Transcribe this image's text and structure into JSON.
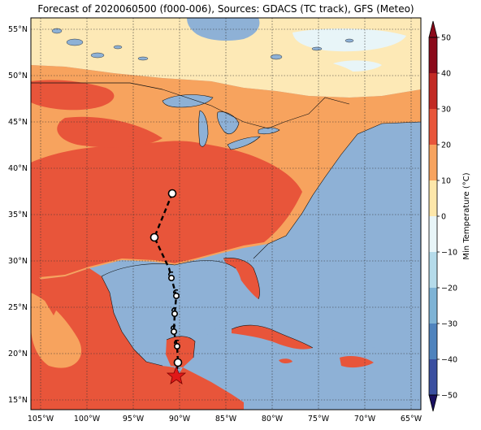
{
  "title": "Forecast of 2020060500 (f000-006), Sources: GDACS (TC track), GFS (Meteo)",
  "map": {
    "lon_ticks": [
      "105°W",
      "100°W",
      "95°W",
      "90°W",
      "85°W",
      "80°W",
      "75°W",
      "70°W",
      "65°W"
    ],
    "lat_ticks": [
      "55°N",
      "50°N",
      "45°N",
      "40°N",
      "35°N",
      "30°N",
      "25°N",
      "20°N",
      "15°N"
    ]
  },
  "colorbar": {
    "label": "Min Temperature (°C)",
    "ticks": [
      "50",
      "40",
      "30",
      "20",
      "10",
      "0",
      "−10",
      "−20",
      "−30",
      "−40",
      "−50"
    ],
    "colors": [
      "#8b0a1a",
      "#c22a24",
      "#e8553a",
      "#f7a35e",
      "#fde7aa",
      "#e8f5f8",
      "#b5dbea",
      "#7eb3d5",
      "#4f83bd",
      "#3b4fa0",
      "#2a1f6e"
    ]
  },
  "track": {
    "current_position_marker": "star",
    "storm_symbol": "tropical-cyclone-symbol"
  }
}
